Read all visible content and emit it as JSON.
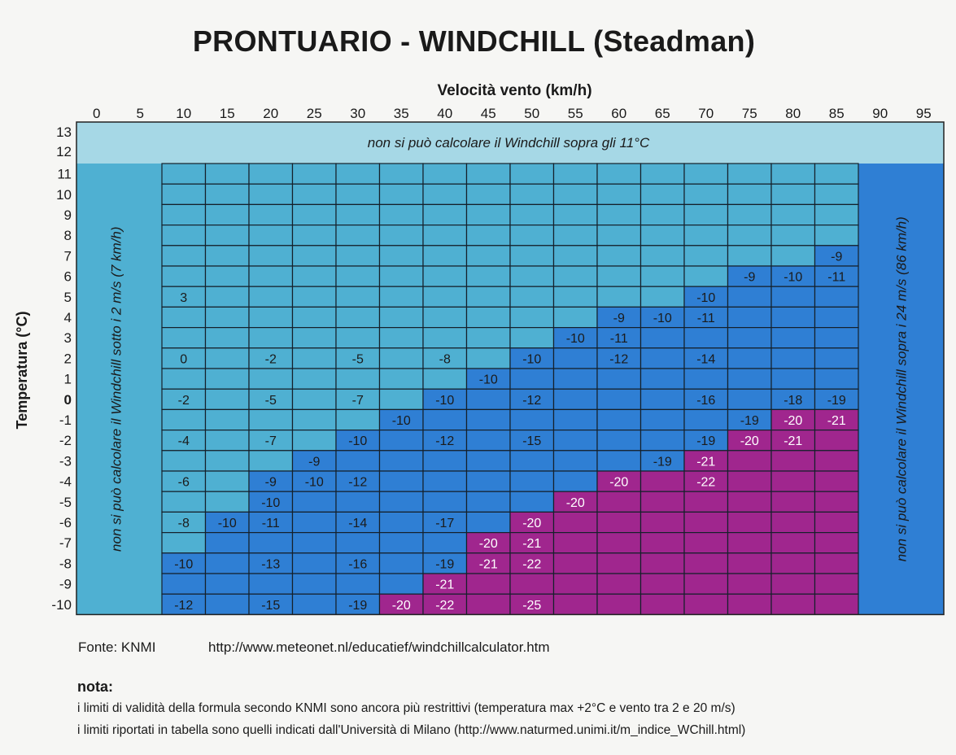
{
  "chart_data": {
    "type": "heatmap",
    "title": "PRONTUARIO - WINDCHILL (Steadman)",
    "xlabel": "Velocità vento (km/h)",
    "ylabel": "Temperatura (°C)",
    "x": [
      "0",
      "5",
      "10",
      "15",
      "20",
      "25",
      "30",
      "35",
      "40",
      "45",
      "50",
      "55",
      "60",
      "65",
      "70",
      "75",
      "80",
      "85",
      "90",
      "95"
    ],
    "y": [
      "13",
      "12",
      "11",
      "10",
      "9",
      "8",
      "7",
      "6",
      "5",
      "4",
      "3",
      "2",
      "1",
      "0",
      "-1",
      "-2",
      "-3",
      "-4",
      "-5",
      "-6",
      "-7",
      "-8",
      "-9",
      "-10"
    ],
    "table_x": [
      "10",
      "15",
      "20",
      "25",
      "30",
      "35",
      "40",
      "45",
      "50",
      "55",
      "60",
      "65",
      "70",
      "75",
      "80",
      "85"
    ],
    "table_y": [
      "11",
      "10",
      "9",
      "8",
      "7",
      "6",
      "5",
      "4",
      "3",
      "2",
      "1",
      "0",
      "-1",
      "-2",
      "-3",
      "-4",
      "-5",
      "-6",
      "-7",
      "-8",
      "-9",
      "-10"
    ],
    "color_scale": [
      "#4fb0d2",
      "#2f7fd4",
      "#a0268e"
    ],
    "region_colors": {
      "above_limit": "#a6d8e6",
      "below_limit": "#4fb0d2",
      "over_limit": "#2f7fd4"
    },
    "values": [
      {
        "t": 7,
        "v": 85,
        "wc": -9
      },
      {
        "t": 6,
        "v": 75,
        "wc": -9
      },
      {
        "t": 6,
        "v": 80,
        "wc": -10
      },
      {
        "t": 6,
        "v": 85,
        "wc": -11
      },
      {
        "t": 5,
        "v": 10,
        "wc": 3
      },
      {
        "t": 5,
        "v": 70,
        "wc": -10
      },
      {
        "t": 4,
        "v": 60,
        "wc": -9
      },
      {
        "t": 4,
        "v": 65,
        "wc": -10
      },
      {
        "t": 4,
        "v": 70,
        "wc": -11
      },
      {
        "t": 3,
        "v": 55,
        "wc": -10
      },
      {
        "t": 3,
        "v": 60,
        "wc": -11
      },
      {
        "t": 2,
        "v": 10,
        "wc": 0
      },
      {
        "t": 2,
        "v": 20,
        "wc": -2
      },
      {
        "t": 2,
        "v": 30,
        "wc": -5
      },
      {
        "t": 2,
        "v": 40,
        "wc": -8
      },
      {
        "t": 2,
        "v": 50,
        "wc": -10
      },
      {
        "t": 2,
        "v": 60,
        "wc": -12
      },
      {
        "t": 2,
        "v": 70,
        "wc": -14
      },
      {
        "t": 1,
        "v": 45,
        "wc": -10
      },
      {
        "t": 0,
        "v": 10,
        "wc": -2
      },
      {
        "t": 0,
        "v": 20,
        "wc": -5
      },
      {
        "t": 0,
        "v": 30,
        "wc": -7
      },
      {
        "t": 0,
        "v": 40,
        "wc": -10
      },
      {
        "t": 0,
        "v": 50,
        "wc": -12
      },
      {
        "t": 0,
        "v": 70,
        "wc": -16
      },
      {
        "t": 0,
        "v": 80,
        "wc": -18
      },
      {
        "t": 0,
        "v": 85,
        "wc": -19
      },
      {
        "t": -1,
        "v": 35,
        "wc": -10
      },
      {
        "t": -1,
        "v": 75,
        "wc": -19
      },
      {
        "t": -1,
        "v": 80,
        "wc": -20
      },
      {
        "t": -1,
        "v": 85,
        "wc": -21
      },
      {
        "t": -2,
        "v": 10,
        "wc": -4
      },
      {
        "t": -2,
        "v": 20,
        "wc": -7
      },
      {
        "t": -2,
        "v": 30,
        "wc": -10
      },
      {
        "t": -2,
        "v": 40,
        "wc": -12
      },
      {
        "t": -2,
        "v": 50,
        "wc": -15
      },
      {
        "t": -2,
        "v": 70,
        "wc": -19
      },
      {
        "t": -2,
        "v": 75,
        "wc": -20
      },
      {
        "t": -2,
        "v": 80,
        "wc": -21
      },
      {
        "t": -3,
        "v": 25,
        "wc": -9
      },
      {
        "t": -3,
        "v": 65,
        "wc": -19
      },
      {
        "t": -3,
        "v": 70,
        "wc": -21
      },
      {
        "t": -4,
        "v": 10,
        "wc": -6
      },
      {
        "t": -4,
        "v": 20,
        "wc": -9
      },
      {
        "t": -4,
        "v": 25,
        "wc": -10
      },
      {
        "t": -4,
        "v": 30,
        "wc": -12
      },
      {
        "t": -4,
        "v": 60,
        "wc": -20
      },
      {
        "t": -4,
        "v": 70,
        "wc": -22
      },
      {
        "t": -5,
        "v": 20,
        "wc": -10
      },
      {
        "t": -5,
        "v": 55,
        "wc": -20
      },
      {
        "t": -6,
        "v": 10,
        "wc": -8
      },
      {
        "t": -6,
        "v": 15,
        "wc": -10
      },
      {
        "t": -6,
        "v": 20,
        "wc": -11
      },
      {
        "t": -6,
        "v": 30,
        "wc": -14
      },
      {
        "t": -6,
        "v": 40,
        "wc": -17
      },
      {
        "t": -6,
        "v": 50,
        "wc": -20
      },
      {
        "t": -7,
        "v": 45,
        "wc": -20
      },
      {
        "t": -7,
        "v": 50,
        "wc": -21
      },
      {
        "t": -8,
        "v": 10,
        "wc": -10
      },
      {
        "t": -8,
        "v": 20,
        "wc": -13
      },
      {
        "t": -8,
        "v": 30,
        "wc": -16
      },
      {
        "t": -8,
        "v": 40,
        "wc": -19
      },
      {
        "t": -8,
        "v": 45,
        "wc": -21
      },
      {
        "t": -8,
        "v": 50,
        "wc": -22
      },
      {
        "t": -9,
        "v": 40,
        "wc": -21
      },
      {
        "t": -10,
        "v": 10,
        "wc": -12
      },
      {
        "t": -10,
        "v": 20,
        "wc": -15
      },
      {
        "t": -10,
        "v": 30,
        "wc": -19
      },
      {
        "t": -10,
        "v": 35,
        "wc": -20
      },
      {
        "t": -10,
        "v": 40,
        "wc": -22
      },
      {
        "t": -10,
        "v": 50,
        "wc": -25
      }
    ],
    "band_texts": {
      "top": "non si può calcolare il Windchill sopra gli 11°C",
      "left": "non si può calcolare il Windchill sotto i 2 m/s (7 km/h)",
      "right": "non si può calcolare il Windchill sopra i 24 m/s (86 km/h)"
    }
  },
  "footer": {
    "source_label": "Fonte: KNMI",
    "source_url": "http://www.meteonet.nl/educatief/windchillcalculator.htm",
    "nota_title": "nota:",
    "nota_lines": [
      "i limiti di validità della formula secondo KNMI sono ancora più restrittivi (temperatura max +2°C e vento tra 2 e 20 m/s)",
      "i limiti riportati in tabella sono quelli indicati dall'Università di Milano (http://www.naturmed.unimi.it/m_indice_WChill.html)"
    ]
  }
}
